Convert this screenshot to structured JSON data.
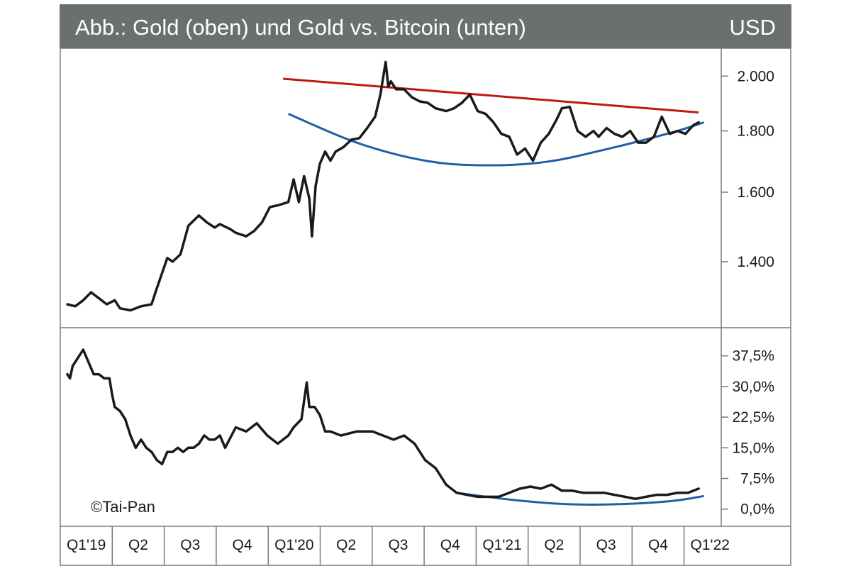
{
  "header": {
    "title": "Abb.: Gold (oben) und Gold vs. Bitcoin (unten)",
    "currency": "USD"
  },
  "colors": {
    "header_bg": "#6c6f70",
    "header_text": "#ffffff",
    "line": "#1a1a1a",
    "resistance": "#c0180f",
    "support": "#1f5fa6",
    "frame": "#7a7a7a"
  },
  "copyright": "©Tai-Pan",
  "x_axis": {
    "labels": [
      "Q1'19",
      "Q2",
      "Q3",
      "Q4",
      "Q1'20",
      "Q2",
      "Q3",
      "Q4",
      "Q1'21",
      "Q2",
      "Q3",
      "Q4",
      "Q1'22"
    ],
    "range": [
      0,
      12.2
    ]
  },
  "chart_data": [
    {
      "type": "line",
      "title": "Gold",
      "ylabel": "USD",
      "ylim": [
        1245,
        2090
      ],
      "y_ticks": [
        2000,
        1800,
        1600,
        1400
      ],
      "y_tick_labels": [
        "2.000",
        "1.800",
        "1.600",
        "1.400"
      ],
      "series": [
        {
          "name": "Gold",
          "x": [
            0,
            0.15,
            0.3,
            0.45,
            0.6,
            0.75,
            0.9,
            1.0,
            1.2,
            1.4,
            1.6,
            1.7,
            1.9,
            2.0,
            2.15,
            2.3,
            2.5,
            2.65,
            2.8,
            2.9,
            3.1,
            3.2,
            3.4,
            3.55,
            3.7,
            3.85,
            4.0,
            4.2,
            4.3,
            4.4,
            4.5,
            4.6,
            4.65,
            4.72,
            4.8,
            4.9,
            5.0,
            5.1,
            5.25,
            5.4,
            5.55,
            5.7,
            5.85,
            5.95,
            6.05,
            6.1,
            6.15,
            6.25,
            6.4,
            6.55,
            6.7,
            6.85,
            7.0,
            7.2,
            7.35,
            7.5,
            7.65,
            7.8,
            7.95,
            8.1,
            8.25,
            8.4,
            8.55,
            8.7,
            8.85,
            9.0,
            9.15,
            9.3,
            9.4,
            9.55,
            9.7,
            9.85,
            10.0,
            10.1,
            10.25,
            10.4,
            10.55,
            10.7,
            10.85,
            11.0,
            11.15,
            11.3,
            11.45,
            11.6,
            11.75,
            11.9,
            12.0
          ],
          "values": [
            1290,
            1285,
            1300,
            1320,
            1305,
            1290,
            1300,
            1280,
            1275,
            1285,
            1290,
            1330,
            1410,
            1400,
            1420,
            1500,
            1530,
            1510,
            1495,
            1505,
            1490,
            1480,
            1470,
            1485,
            1510,
            1555,
            1560,
            1570,
            1640,
            1570,
            1650,
            1580,
            1470,
            1620,
            1690,
            1730,
            1700,
            1730,
            1745,
            1770,
            1775,
            1810,
            1850,
            1930,
            2055,
            1960,
            1980,
            1950,
            1950,
            1920,
            1905,
            1900,
            1880,
            1870,
            1880,
            1900,
            1930,
            1870,
            1860,
            1830,
            1790,
            1780,
            1720,
            1740,
            1700,
            1760,
            1790,
            1840,
            1880,
            1885,
            1800,
            1780,
            1800,
            1780,
            1810,
            1790,
            1780,
            1800,
            1760,
            1760,
            1780,
            1850,
            1790,
            1800,
            1790,
            1820,
            1830
          ]
        }
      ],
      "resistance_line": {
        "x": [
          4.1,
          12.0
        ],
        "y": [
          1990,
          1865
        ]
      },
      "support_curve": {
        "x": [
          4.2,
          5.5,
          6.8,
          7.9,
          9.1,
          10.3,
          11.5,
          12.1
        ],
        "y": [
          1860,
          1760,
          1700,
          1685,
          1696,
          1740,
          1795,
          1830
        ]
      }
    },
    {
      "type": "line",
      "title": "Gold vs. Bitcoin",
      "ylabel": "%",
      "ylim": [
        -3,
        43
      ],
      "y_ticks": [
        37.5,
        30.0,
        22.5,
        15.0,
        7.5,
        0.0
      ],
      "y_tick_labels": [
        "37,5%",
        "30,0%",
        "22,5%",
        "15,0%",
        "7,5%",
        "0,0%"
      ],
      "series": [
        {
          "name": "Gold vs. Bitcoin",
          "x": [
            0,
            0.05,
            0.1,
            0.2,
            0.3,
            0.4,
            0.5,
            0.6,
            0.7,
            0.8,
            0.85,
            0.9,
            1.0,
            1.1,
            1.2,
            1.3,
            1.4,
            1.5,
            1.6,
            1.7,
            1.8,
            1.9,
            2.0,
            2.1,
            2.2,
            2.3,
            2.4,
            2.5,
            2.6,
            2.7,
            2.8,
            2.9,
            3.0,
            3.2,
            3.4,
            3.6,
            3.8,
            4.0,
            4.2,
            4.3,
            4.45,
            4.55,
            4.6,
            4.7,
            4.8,
            4.9,
            5.0,
            5.2,
            5.5,
            5.8,
            6.0,
            6.2,
            6.4,
            6.6,
            6.8,
            6.9,
            7.0,
            7.2,
            7.4,
            7.6,
            7.8,
            8.0,
            8.2,
            8.4,
            8.6,
            8.8,
            9.0,
            9.2,
            9.4,
            9.6,
            9.8,
            10.0,
            10.2,
            10.4,
            10.6,
            10.8,
            11.0,
            11.2,
            11.4,
            11.6,
            11.8,
            12.0
          ],
          "values": [
            33,
            32,
            35,
            37,
            39,
            36,
            33,
            33,
            32,
            32,
            28,
            25,
            24,
            22,
            18,
            15,
            17,
            15,
            14,
            12,
            11,
            14,
            14,
            15,
            14,
            15,
            15,
            16,
            18,
            17,
            17,
            18,
            15,
            20,
            19,
            21,
            18,
            16,
            18,
            20,
            22,
            31,
            25,
            25,
            23,
            19,
            19,
            18,
            19,
            19,
            18,
            17,
            18,
            16,
            12,
            11,
            10,
            6,
            4,
            3.5,
            3,
            3,
            3,
            4,
            5,
            5.5,
            5,
            6,
            4.5,
            4.5,
            4,
            4,
            4,
            3.5,
            3,
            2.5,
            3,
            3.5,
            3.5,
            4,
            4,
            5
          ]
        }
      ],
      "support_curve": {
        "x": [
          7.5,
          8.5,
          9.5,
          10.5,
          11.5,
          12.1
        ],
        "y": [
          3.8,
          2.2,
          1.2,
          1.2,
          2.0,
          3.2
        ]
      }
    }
  ]
}
